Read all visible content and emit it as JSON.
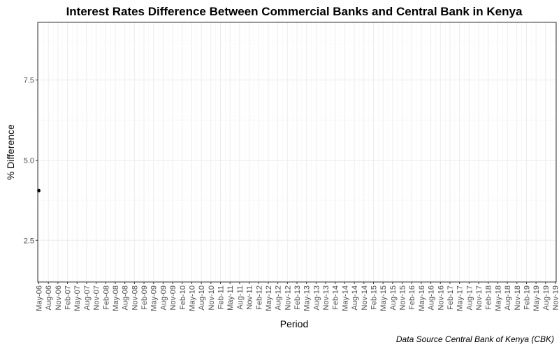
{
  "chart_data": {
    "type": "scatter",
    "title": "Interest Rates Difference Between Commercial Banks and Central Bank in Kenya",
    "xlabel": "Period",
    "ylabel": "% Difference",
    "caption": "Data Source Central Bank of Kenya (CBK)",
    "y_ticks": [
      2.5,
      5.0,
      7.5
    ],
    "y_tick_labels": [
      "2.5",
      "5.0",
      "7.5"
    ],
    "ylim": [
      1.2,
      9.3
    ],
    "x_ticks": [
      "May-06",
      "Aug-06",
      "Nov-06",
      "Feb-07",
      "May-07",
      "Aug-07",
      "Nov-07",
      "Feb-08",
      "May-08",
      "Aug-08",
      "Nov-08",
      "Feb-09",
      "May-09",
      "Aug-09",
      "Nov-09",
      "Feb-10",
      "May-10",
      "Aug-10",
      "Nov-10",
      "Feb-11",
      "May-11",
      "Aug-11",
      "Nov-11",
      "Feb-12",
      "May-12",
      "Aug-12",
      "Nov-12",
      "Feb-13",
      "May-13",
      "Aug-13",
      "Nov-13",
      "Feb-14",
      "May-14",
      "Aug-14",
      "Nov-14",
      "Feb-15",
      "May-15",
      "Aug-15",
      "Nov-15",
      "Feb-16",
      "May-16",
      "Aug-16",
      "Nov-16",
      "Feb-17",
      "May-17",
      "Aug-17",
      "Nov-17",
      "Feb-18",
      "May-18",
      "Aug-18",
      "Nov-18",
      "Feb-19",
      "May-19",
      "Aug-19",
      "Nov-19"
    ],
    "points": [
      {
        "x": "May-06",
        "y": 4.05
      }
    ],
    "grid": true,
    "colors": {
      "point": "#000000",
      "grid_major": "#ebebeb",
      "grid_minor": "#f5f5f5",
      "border": "#333333"
    }
  }
}
